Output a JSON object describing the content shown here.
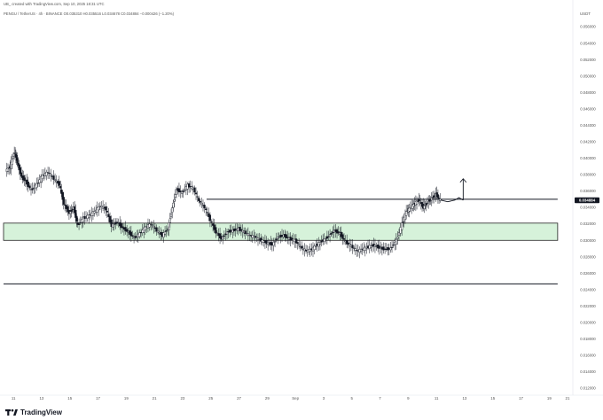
{
  "header": {
    "creator_line": "UB_ created with TradingView.com, Sep 10, 2025 18:31 UTC",
    "legend_line": "PENGU / TetherUS · 4h · BINANCE  O0.035310  H0.035516  L0.034678  C0.034884  −0.000426 (−1.20%)"
  },
  "branding": {
    "logo_label": "TradingView"
  },
  "colors": {
    "up": "#131722",
    "down": "#131722",
    "zone_fill": "#d6f2da",
    "zone_border": "#222222",
    "line": "#131722",
    "price_tag": "#131722"
  },
  "chart_data": {
    "type": "candlestick",
    "symbol": "PENGU / TetherUS",
    "interval": "4h",
    "exchange": "BINANCE",
    "currency_label": "USDT",
    "ylim": [
      0.0118,
      0.0584
    ],
    "price_ticks": [
      "0.056000",
      "0.054000",
      "0.052000",
      "0.050000",
      "0.048000",
      "0.046000",
      "0.044000",
      "0.042000",
      "0.040000",
      "0.038000",
      "0.036000",
      "0.034000",
      "0.032000",
      "0.030000",
      "0.028000",
      "0.026000",
      "0.024000",
      "0.022000",
      "0.020000",
      "0.018000",
      "0.016000",
      "0.014000",
      "0.012000"
    ],
    "price_tick_values": [
      0.056,
      0.054,
      0.052,
      0.05,
      0.048,
      0.046,
      0.044,
      0.042,
      0.04,
      0.038,
      0.036,
      0.034,
      0.032,
      0.03,
      0.028,
      0.026,
      0.024,
      0.022,
      0.02,
      0.018,
      0.016,
      0.014,
      0.012
    ],
    "last_price": "0.034884",
    "last_price_value": 0.034884,
    "x_range": [
      0,
      40
    ],
    "x_tick_labels": [
      "11",
      "13",
      "15",
      "17",
      "19",
      "21",
      "23",
      "25",
      "27",
      "29",
      "Sep",
      "3",
      "5",
      "7",
      "9",
      "11",
      "13",
      "15",
      "17",
      "19",
      "21"
    ],
    "x_tick_positions": [
      0.7,
      2.7,
      4.7,
      6.7,
      8.7,
      10.7,
      12.7,
      14.7,
      16.7,
      18.7,
      20.7,
      22.7,
      24.7,
      26.7,
      28.7,
      30.7,
      32.7,
      34.7,
      36.7,
      38.7,
      40.0
    ],
    "close_path": [
      [
        0.2,
        0.0385
      ],
      [
        0.5,
        0.0389
      ],
      [
        0.8,
        0.0408
      ],
      [
        1.0,
        0.0395
      ],
      [
        1.3,
        0.0378
      ],
      [
        1.6,
        0.0372
      ],
      [
        2.0,
        0.0361
      ],
      [
        2.4,
        0.0368
      ],
      [
        2.8,
        0.0379
      ],
      [
        3.2,
        0.0383
      ],
      [
        3.6,
        0.0375
      ],
      [
        4.0,
        0.0368
      ],
      [
        4.3,
        0.0345
      ],
      [
        4.7,
        0.0333
      ],
      [
        5.0,
        0.034
      ],
      [
        5.3,
        0.0318
      ],
      [
        5.7,
        0.0327
      ],
      [
        6.1,
        0.033
      ],
      [
        6.5,
        0.0335
      ],
      [
        6.9,
        0.0342
      ],
      [
        7.3,
        0.0338
      ],
      [
        7.7,
        0.0318
      ],
      [
        8.1,
        0.0322
      ],
      [
        8.5,
        0.0315
      ],
      [
        8.9,
        0.031
      ],
      [
        9.3,
        0.0303
      ],
      [
        9.7,
        0.0308
      ],
      [
        10.1,
        0.0316
      ],
      [
        10.5,
        0.032
      ],
      [
        10.9,
        0.0312
      ],
      [
        11.3,
        0.0306
      ],
      [
        11.7,
        0.0314
      ],
      [
        12.0,
        0.034
      ],
      [
        12.3,
        0.0362
      ],
      [
        12.7,
        0.0358
      ],
      [
        13.1,
        0.0367
      ],
      [
        13.5,
        0.0363
      ],
      [
        13.9,
        0.0348
      ],
      [
        14.3,
        0.034
      ],
      [
        14.7,
        0.0325
      ],
      [
        15.1,
        0.031
      ],
      [
        15.5,
        0.0302
      ],
      [
        15.9,
        0.031
      ],
      [
        16.3,
        0.0312
      ],
      [
        16.7,
        0.0314
      ],
      [
        17.1,
        0.031
      ],
      [
        17.5,
        0.0306
      ],
      [
        17.9,
        0.0304
      ],
      [
        18.3,
        0.03
      ],
      [
        18.7,
        0.0297
      ],
      [
        19.1,
        0.0295
      ],
      [
        19.5,
        0.0304
      ],
      [
        19.9,
        0.0306
      ],
      [
        20.3,
        0.0302
      ],
      [
        20.7,
        0.03
      ],
      [
        21.1,
        0.0292
      ],
      [
        21.5,
        0.0287
      ],
      [
        21.9,
        0.0289
      ],
      [
        22.3,
        0.0295
      ],
      [
        22.7,
        0.03
      ],
      [
        23.1,
        0.0305
      ],
      [
        23.5,
        0.0312
      ],
      [
        23.9,
        0.0308
      ],
      [
        24.3,
        0.0298
      ],
      [
        24.7,
        0.0293
      ],
      [
        25.1,
        0.0287
      ],
      [
        25.5,
        0.0289
      ],
      [
        25.9,
        0.0292
      ],
      [
        26.3,
        0.0294
      ],
      [
        26.7,
        0.0291
      ],
      [
        27.1,
        0.0289
      ],
      [
        27.5,
        0.029
      ],
      [
        27.9,
        0.03
      ],
      [
        28.3,
        0.032
      ],
      [
        28.6,
        0.0335
      ],
      [
        28.9,
        0.034
      ],
      [
        29.2,
        0.0345
      ],
      [
        29.5,
        0.0349
      ],
      [
        29.8,
        0.034
      ],
      [
        30.1,
        0.0346
      ],
      [
        30.4,
        0.0351
      ],
      [
        30.7,
        0.0356
      ],
      [
        31.0,
        0.0349
      ]
    ],
    "resistance_line": {
      "price": 0.035,
      "from_x": 14.4,
      "to_x": 39.3
    },
    "support_line": {
      "price": 0.0247,
      "from_x": 0.0,
      "to_x": 39.3
    },
    "demand_zone": {
      "top": 0.0321,
      "bottom": 0.03,
      "from_x": 0.0,
      "to_x": 39.3
    },
    "projection": [
      [
        31.0,
        0.0349
      ],
      [
        31.5,
        0.0347
      ],
      [
        32.0,
        0.0349
      ],
      [
        32.3,
        0.0352
      ],
      [
        32.6,
        0.0349
      ]
    ],
    "projection_arrow": {
      "x": 32.6,
      "from": 0.0349,
      "to": 0.0375
    },
    "grid": false,
    "legend": "none"
  }
}
